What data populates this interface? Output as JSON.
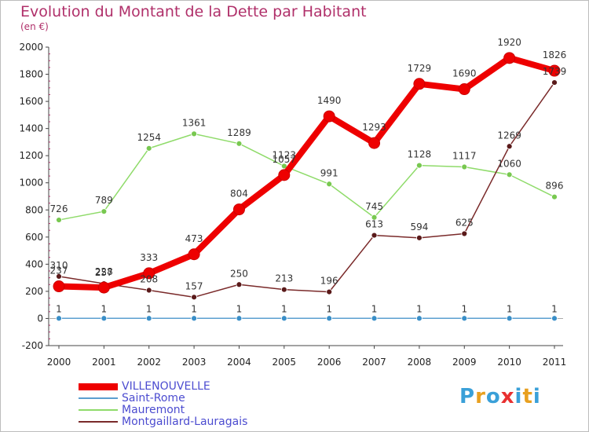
{
  "title": "Evolution du Montant de la Dette par Habitant",
  "unit": "(en €)",
  "logo": [
    "P",
    "r",
    "o",
    "x",
    "i",
    "t",
    "i"
  ],
  "logo_colors": [
    "#3aa0d8",
    "#e8a020",
    "#3aa0d8",
    "#e83030",
    "#3aa0d8",
    "#e8a020",
    "#3aa0d8"
  ],
  "chart_data": {
    "type": "line",
    "title": "Evolution du Montant de la Dette par Habitant",
    "ylabel": "(en €)",
    "xlabel": "",
    "categories": [
      "2000",
      "2001",
      "2002",
      "2003",
      "2004",
      "2005",
      "2006",
      "2007",
      "2008",
      "2009",
      "2010",
      "2011"
    ],
    "ylim": [
      -200,
      2000
    ],
    "yticks": [
      -200,
      0,
      200,
      400,
      600,
      800,
      1000,
      1200,
      1400,
      1600,
      1800,
      2000
    ],
    "grid": false,
    "legend": "bottom-left",
    "series": [
      {
        "name": "VILLENOUVELLE",
        "color": "#ee0000",
        "values": [
          237,
          228,
          333,
          473,
          804,
          1057,
          1490,
          1293,
          1729,
          1690,
          1920,
          1826
        ],
        "labels": [
          "237",
          "228",
          "333",
          "473",
          "804",
          "1057",
          "1490",
          "1293",
          "1729",
          "1690",
          "1920",
          "1826"
        ]
      },
      {
        "name": "Saint-Rome",
        "color": "#5b9fd0",
        "values": [
          1,
          1,
          1,
          1,
          1,
          1,
          1,
          1,
          1,
          1,
          1,
          1
        ],
        "labels": [
          "1",
          "1",
          "1",
          "1",
          "1",
          "1",
          "1",
          "1",
          "1",
          "1",
          "1",
          "1"
        ]
      },
      {
        "name": "Mauremont",
        "color": "#8fdb6a",
        "values": [
          726,
          789,
          1254,
          1361,
          1289,
          1123,
          991,
          745,
          1128,
          1117,
          1060,
          896
        ],
        "labels": [
          "726",
          "789",
          "1254",
          "1361",
          "1289",
          "1123",
          "991",
          "745",
          "1128",
          "1117",
          "1060",
          "896"
        ]
      },
      {
        "name": "Montgaillard-Lauragais",
        "color": "#7a2a2a",
        "values": [
          310,
          257,
          208,
          157,
          250,
          213,
          196,
          613,
          594,
          625,
          1269,
          1739
        ],
        "labels": [
          "310",
          "257",
          "208",
          "157",
          "250",
          "213",
          "196",
          "613",
          "594",
          "625",
          "1269",
          "1739"
        ]
      }
    ]
  }
}
